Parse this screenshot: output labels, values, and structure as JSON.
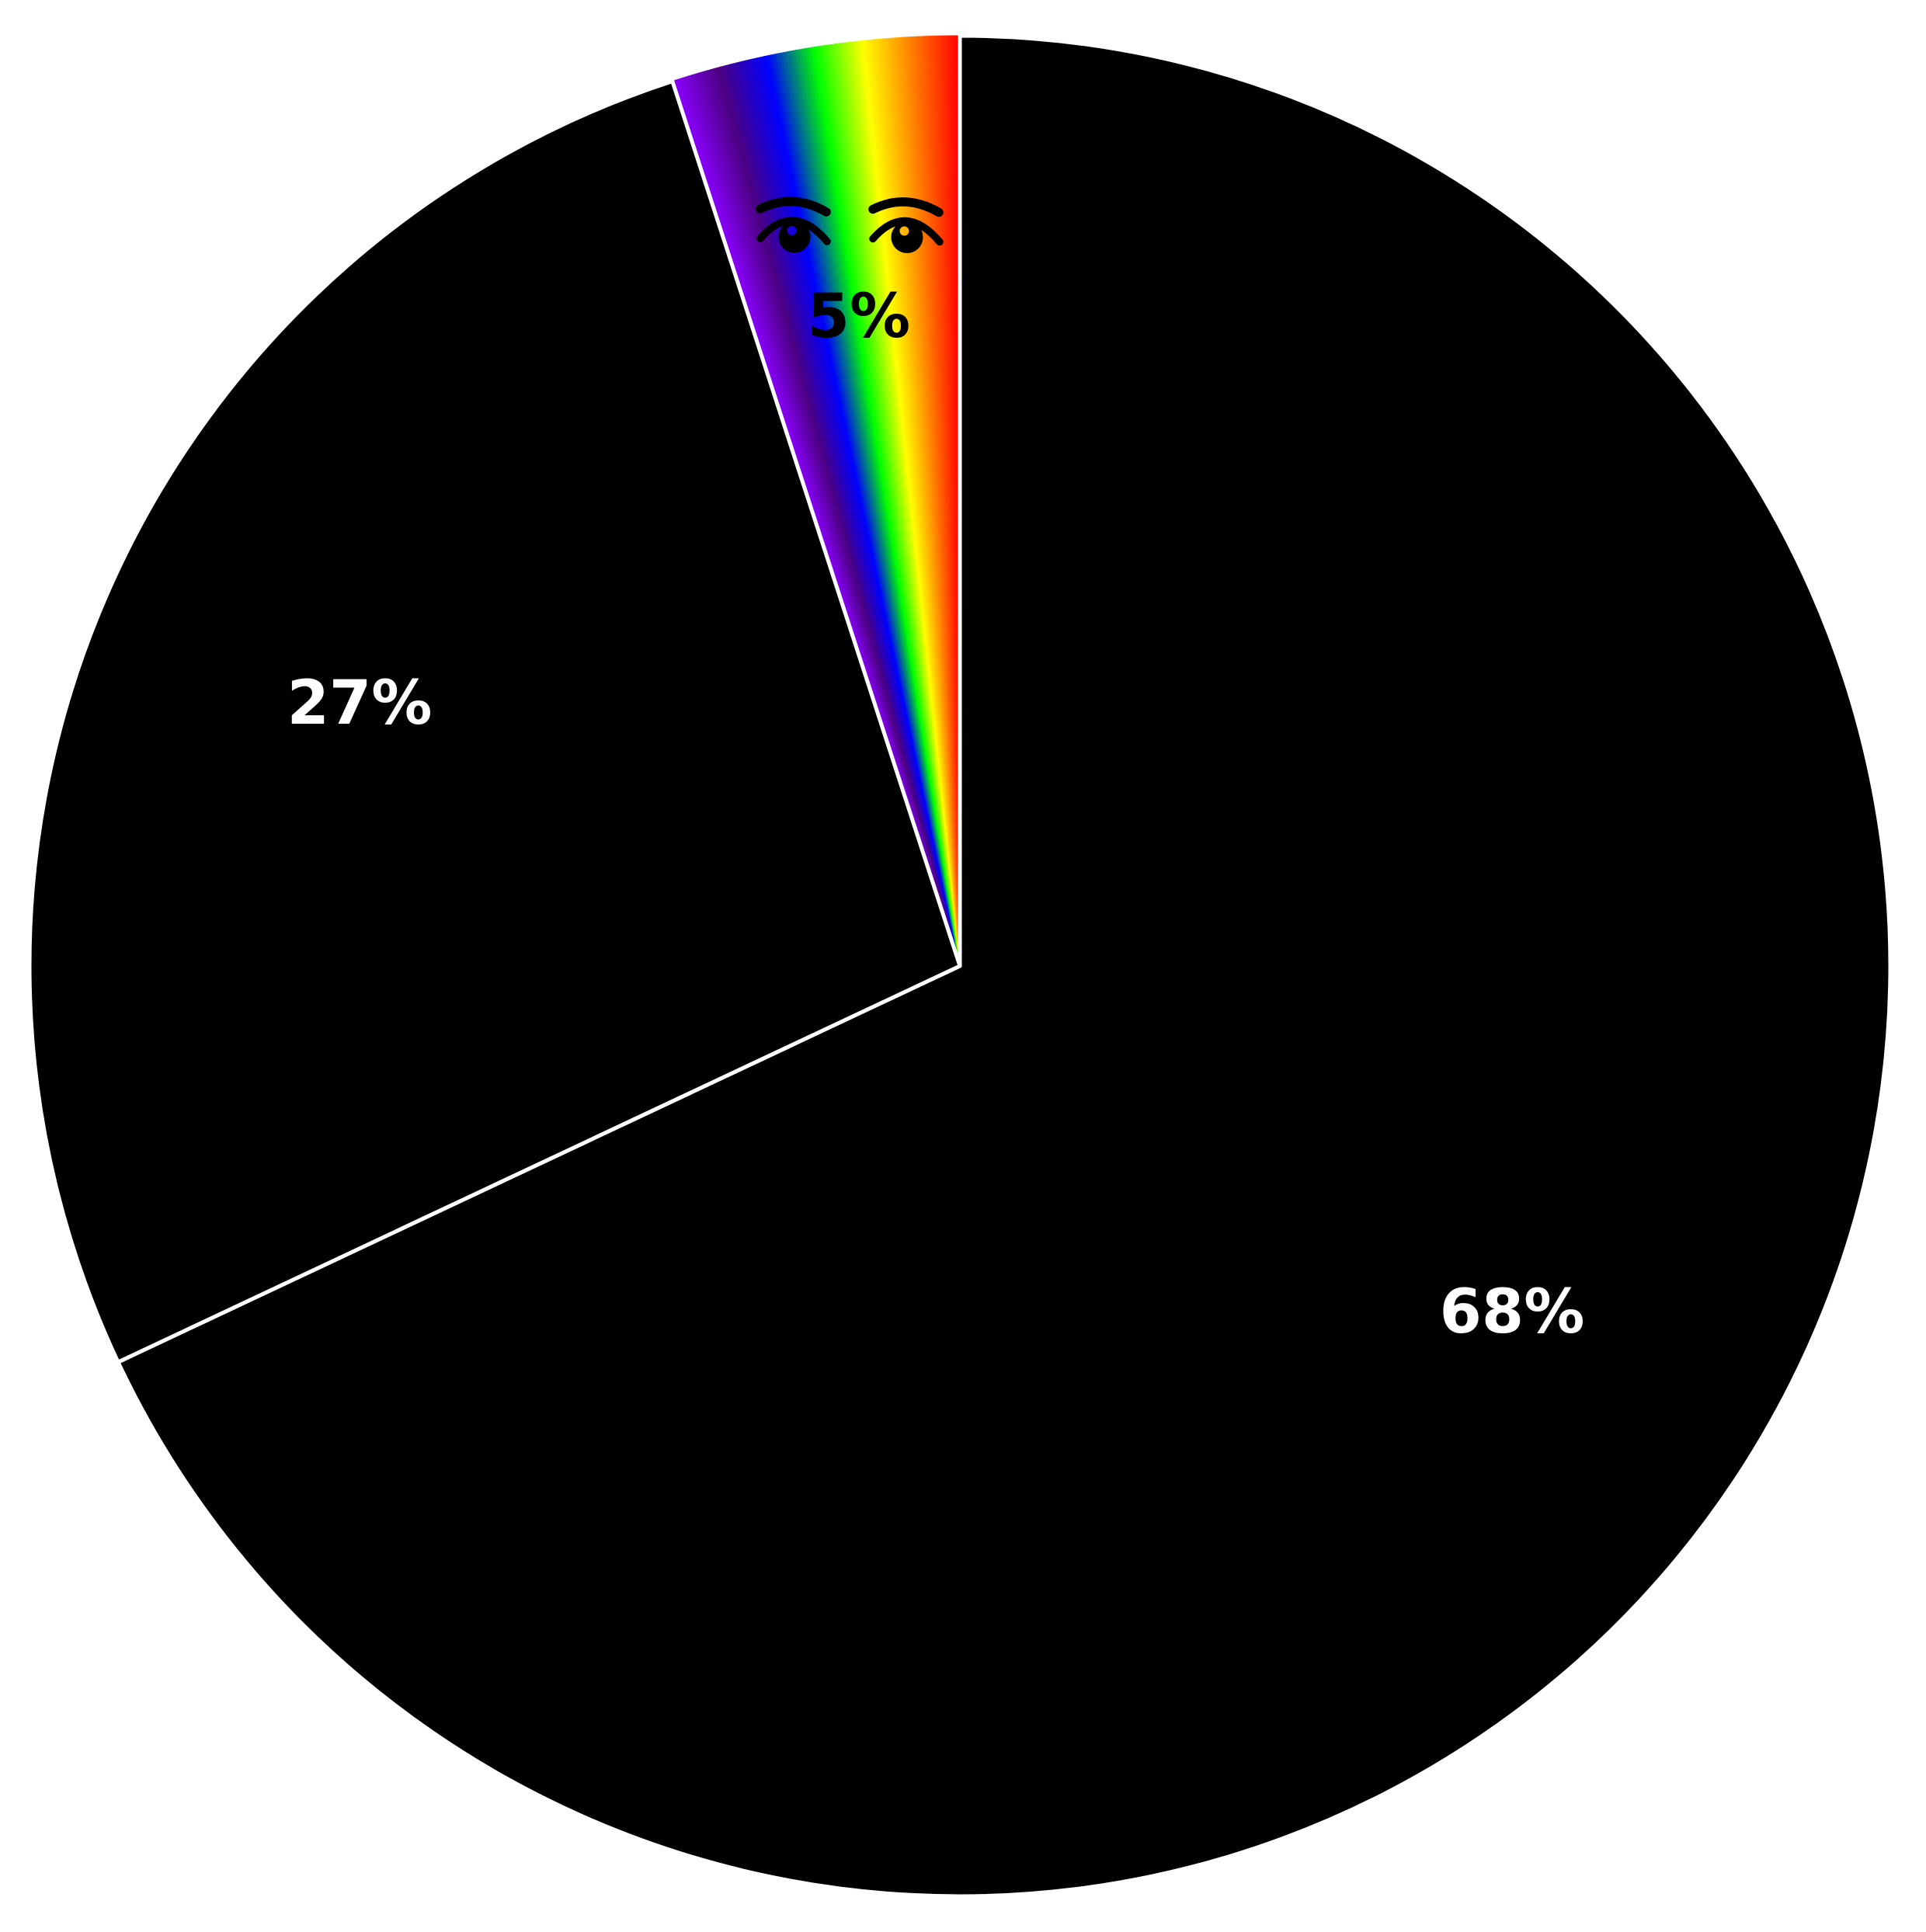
{
  "chart_data": {
    "type": "pie",
    "labels": [
      "68%",
      "27%",
      "5%"
    ],
    "values": [
      68,
      27,
      5
    ],
    "slices": [
      {
        "label": "68%",
        "value": 68,
        "color": "#000000",
        "label_color": "#ffffff"
      },
      {
        "label": "27%",
        "value": 27,
        "color": "#000000",
        "label_color": "#ffffff"
      },
      {
        "label": "5%",
        "value": 5,
        "color": "rainbow-spectrum-gradient",
        "label_color": "#000000",
        "gradient_type": "angular",
        "gradient_stops": [
          "#8B00FF",
          "#4B0082",
          "#0000FF",
          "#00FF00",
          "#FFFF00",
          "#FF7F00",
          "#FF0000"
        ],
        "decoration": "eyes-icon"
      }
    ],
    "start_angle_deg": 90,
    "direction": "clockwise",
    "wedge_border_color": "#ffffff",
    "wedge_border_width_px": 5,
    "label_distance_fraction": 0.7,
    "background": "#ffffff"
  },
  "decorations": {
    "eyes": {
      "icon": "eyes-icon",
      "on_slice": "5%",
      "color": "#000000",
      "count": 2
    }
  }
}
